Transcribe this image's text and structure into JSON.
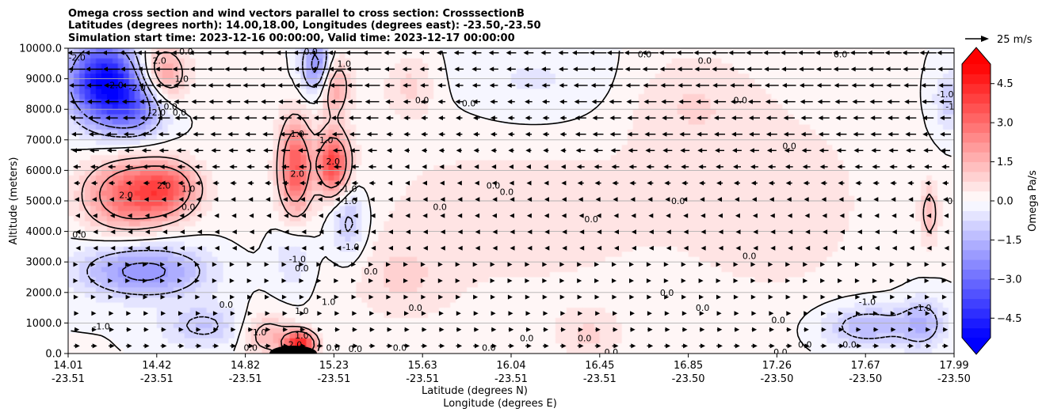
{
  "title_lines": [
    "Omega cross section and wind vectors parallel to cross section: CrosssectionB",
    "Latitudes (degrees north): 14.00,18.00, Longitudes (degrees east): -23.50,-23.50",
    "Simulation start time: 2023-12-16 00:00:00, Valid time: 2023-12-17 00:00:00"
  ],
  "chart_data": {
    "type": "heatmap",
    "ylabel": "Altitude (meters)",
    "xlabel_line1": "Latitude (degrees N)",
    "xlabel_line2": "Longitude (degrees E)",
    "ylim": [
      0,
      10000
    ],
    "y_ticks": [
      "0.0",
      "1000.0",
      "2000.0",
      "3000.0",
      "4000.0",
      "5000.0",
      "6000.0",
      "7000.0",
      "8000.0",
      "9000.0",
      "10000.0"
    ],
    "x_ticks": [
      {
        "lat": "14.01",
        "lon": "-23.51"
      },
      {
        "lat": "14.42",
        "lon": "-23.51"
      },
      {
        "lat": "14.82",
        "lon": "-23.51"
      },
      {
        "lat": "15.23",
        "lon": "-23.51"
      },
      {
        "lat": "15.63",
        "lon": "-23.51"
      },
      {
        "lat": "16.04",
        "lon": "-23.51"
      },
      {
        "lat": "16.45",
        "lon": "-23.51"
      },
      {
        "lat": "16.85",
        "lon": "-23.50"
      },
      {
        "lat": "17.26",
        "lon": "-23.50"
      },
      {
        "lat": "17.67",
        "lon": "-23.50"
      },
      {
        "lat": "17.99",
        "lon": "-23.50"
      }
    ],
    "grid": "horizontal",
    "colorbar": {
      "label": "Omega Pa/s",
      "range": [
        -5.25,
        5.25
      ],
      "step": 0.375,
      "ticks": [
        "4.5",
        "3.0",
        "1.5",
        "0.0",
        "−1.5",
        "−3.0",
        "−4.5"
      ],
      "low_color": "#0000ff",
      "high_color": "#ff0000",
      "extend": "both"
    },
    "quiver_key": {
      "label": "25 m/s"
    },
    "omega_blobs": [
      {
        "lat": 14.17,
        "alt": 8900,
        "value": -5.2,
        "sx": 0.11,
        "sy": 900
      },
      {
        "lat": 14.32,
        "alt": 8100,
        "value": -2.4,
        "sx": 0.1,
        "sy": 700
      },
      {
        "lat": 14.43,
        "alt": 9100,
        "value": 2.2,
        "sx": 0.08,
        "sy": 700
      },
      {
        "lat": 14.28,
        "alt": 5200,
        "value": 3.0,
        "sx": 0.14,
        "sy": 800
      },
      {
        "lat": 14.46,
        "alt": 5400,
        "value": 2.5,
        "sx": 0.1,
        "sy": 600
      },
      {
        "lat": 14.35,
        "alt": 2700,
        "value": -2.3,
        "sx": 0.2,
        "sy": 600
      },
      {
        "lat": 14.62,
        "alt": 900,
        "value": -1.2,
        "sx": 0.13,
        "sy": 500
      },
      {
        "lat": 15.03,
        "alt": 6100,
        "value": 3.3,
        "sx": 0.05,
        "sy": 1100
      },
      {
        "lat": 15.2,
        "alt": 6200,
        "value": 3.8,
        "sx": 0.05,
        "sy": 700
      },
      {
        "lat": 15.13,
        "alt": 9400,
        "value": -2.7,
        "sx": 0.05,
        "sy": 700
      },
      {
        "lat": 15.2,
        "alt": 8800,
        "value": 2.0,
        "sx": 0.05,
        "sy": 700
      },
      {
        "lat": 15.27,
        "alt": 4300,
        "value": -1.4,
        "sx": 0.06,
        "sy": 900
      },
      {
        "lat": 15.02,
        "alt": 3200,
        "value": -0.8,
        "sx": 0.07,
        "sy": 900
      },
      {
        "lat": 15.05,
        "alt": 300,
        "value": 4.5,
        "sx": 0.05,
        "sy": 300
      },
      {
        "lat": 14.9,
        "alt": 600,
        "value": 1.4,
        "sx": 0.08,
        "sy": 500
      },
      {
        "lat": 15.55,
        "alt": 8800,
        "value": 0.8,
        "sx": 0.08,
        "sy": 700
      },
      {
        "lat": 16.05,
        "alt": 4800,
        "value": 0.5,
        "sx": 0.7,
        "sy": 3000
      },
      {
        "lat": 16.1,
        "alt": 8800,
        "value": -0.6,
        "sx": 0.3,
        "sy": 1200
      },
      {
        "lat": 16.8,
        "alt": 8300,
        "value": 0.6,
        "sx": 0.2,
        "sy": 1200
      },
      {
        "lat": 17.25,
        "alt": 5000,
        "value": 0.5,
        "sx": 0.3,
        "sy": 2500
      },
      {
        "lat": 17.6,
        "alt": 900,
        "value": -1.5,
        "sx": 0.15,
        "sy": 500
      },
      {
        "lat": 17.88,
        "alt": 4600,
        "value": 1.4,
        "sx": 0.03,
        "sy": 700
      },
      {
        "lat": 17.85,
        "alt": 1000,
        "value": -1.3,
        "sx": 0.07,
        "sy": 600
      },
      {
        "lat": 17.97,
        "alt": 8300,
        "value": -1.0,
        "sx": 0.05,
        "sy": 700
      },
      {
        "lat": 16.35,
        "alt": 600,
        "value": 0.7,
        "sx": 0.1,
        "sy": 500
      },
      {
        "lat": 15.5,
        "alt": 2500,
        "value": 0.6,
        "sx": 0.15,
        "sy": 900
      }
    ],
    "contour_labels": [
      {
        "text": "0.0",
        "lat": 14.06,
        "alt": 3900
      },
      {
        "text": "-1.0",
        "lat": 14.16,
        "alt": 900
      },
      {
        "text": "-2.0",
        "lat": 14.05,
        "alt": 9700
      },
      {
        "text": "-2.0",
        "lat": 14.22,
        "alt": 8800
      },
      {
        "text": "2.0",
        "lat": 14.42,
        "alt": 9600
      },
      {
        "text": "0.0",
        "lat": 14.54,
        "alt": 9900
      },
      {
        "text": "-2.0",
        "lat": 14.32,
        "alt": 8700
      },
      {
        "text": "-2.0",
        "lat": 14.41,
        "alt": 7900
      },
      {
        "text": "0.0",
        "lat": 14.47,
        "alt": 8100
      },
      {
        "text": "0.0",
        "lat": 14.51,
        "alt": 7900
      },
      {
        "text": "1.0",
        "lat": 14.52,
        "alt": 9000
      },
      {
        "text": "2.0",
        "lat": 14.27,
        "alt": 5200
      },
      {
        "text": "2.0",
        "lat": 14.44,
        "alt": 5500
      },
      {
        "text": "1.0",
        "lat": 14.55,
        "alt": 5400
      },
      {
        "text": "0.0",
        "lat": 14.55,
        "alt": 4800
      },
      {
        "text": "0.0",
        "lat": 14.72,
        "alt": 1600
      },
      {
        "text": "1.0",
        "lat": 14.87,
        "alt": 700
      },
      {
        "text": "0.0",
        "lat": 14.83,
        "alt": 200
      },
      {
        "text": "2.0",
        "lat": 15.04,
        "alt": 5900
      },
      {
        "text": "2.0",
        "lat": 15.2,
        "alt": 6300
      },
      {
        "text": "1.0",
        "lat": 15.17,
        "alt": 7000
      },
      {
        "text": "1.0",
        "lat": 15.04,
        "alt": 7200
      },
      {
        "text": "0.0",
        "lat": 15.1,
        "alt": 9900
      },
      {
        "text": "1.0",
        "lat": 15.25,
        "alt": 9500
      },
      {
        "text": "-1.0",
        "lat": 15.27,
        "alt": 5400
      },
      {
        "text": "-1.0",
        "lat": 15.27,
        "alt": 5000
      },
      {
        "text": "-1.0",
        "lat": 15.28,
        "alt": 3500
      },
      {
        "text": "-1.0",
        "lat": 15.04,
        "alt": 3100
      },
      {
        "text": "0.0",
        "lat": 15.06,
        "alt": 2800
      },
      {
        "text": "1.0",
        "lat": 15.18,
        "alt": 1700
      },
      {
        "text": "1.0",
        "lat": 15.06,
        "alt": 1400
      },
      {
        "text": "1.0",
        "lat": 15.06,
        "alt": 600
      },
      {
        "text": "2.0",
        "lat": 15.03,
        "alt": 300
      },
      {
        "text": "0.0",
        "lat": 15.2,
        "alt": 200
      },
      {
        "text": "0.0",
        "lat": 15.3,
        "alt": 150
      },
      {
        "text": "0.0",
        "lat": 15.37,
        "alt": 2700
      },
      {
        "text": "0.0",
        "lat": 15.5,
        "alt": 200
      },
      {
        "text": "0.0",
        "lat": 15.57,
        "alt": 1500
      },
      {
        "text": "0.0",
        "lat": 15.6,
        "alt": 8300
      },
      {
        "text": "0.0",
        "lat": 15.68,
        "alt": 4800
      },
      {
        "text": "0.0",
        "lat": 15.81,
        "alt": 8200
      },
      {
        "text": "0.0",
        "lat": 15.92,
        "alt": 5500
      },
      {
        "text": "0.0",
        "lat": 15.98,
        "alt": 5300
      },
      {
        "text": "0.0",
        "lat": 15.9,
        "alt": 200
      },
      {
        "text": "0.0",
        "lat": 16.07,
        "alt": 500
      },
      {
        "text": "0.0",
        "lat": 16.33,
        "alt": 500
      },
      {
        "text": "0.0",
        "lat": 16.36,
        "alt": 4400
      },
      {
        "text": "0.0",
        "lat": 16.45,
        "alt": 50
      },
      {
        "text": "0.0",
        "lat": 16.6,
        "alt": 9800
      },
      {
        "text": "0.0",
        "lat": 16.7,
        "alt": 2000
      },
      {
        "text": "0.0",
        "lat": 16.75,
        "alt": 5000
      },
      {
        "text": "0.0",
        "lat": 16.86,
        "alt": 1500
      },
      {
        "text": "0.0",
        "lat": 16.87,
        "alt": 9600
      },
      {
        "text": "0.0",
        "lat": 17.03,
        "alt": 8300
      },
      {
        "text": "0.0",
        "lat": 17.07,
        "alt": 3200
      },
      {
        "text": "0.0",
        "lat": 17.2,
        "alt": 1100
      },
      {
        "text": "0.0",
        "lat": 17.21,
        "alt": 50
      },
      {
        "text": "0.0",
        "lat": 17.25,
        "alt": 6800
      },
      {
        "text": "0.0",
        "lat": 17.32,
        "alt": 300
      },
      {
        "text": "0.0",
        "lat": 17.48,
        "alt": 9800
      },
      {
        "text": "0.0",
        "lat": 17.52,
        "alt": 300
      },
      {
        "text": "-1.0",
        "lat": 17.6,
        "alt": 1700
      },
      {
        "text": "-1.0",
        "lat": 17.85,
        "alt": 1500
      },
      {
        "text": "-1.0",
        "lat": 17.95,
        "alt": 8500
      },
      {
        "text": "-1.0",
        "lat": 17.99,
        "alt": 8100
      },
      {
        "text": "0.0",
        "lat": 17.99,
        "alt": 5000
      }
    ]
  }
}
